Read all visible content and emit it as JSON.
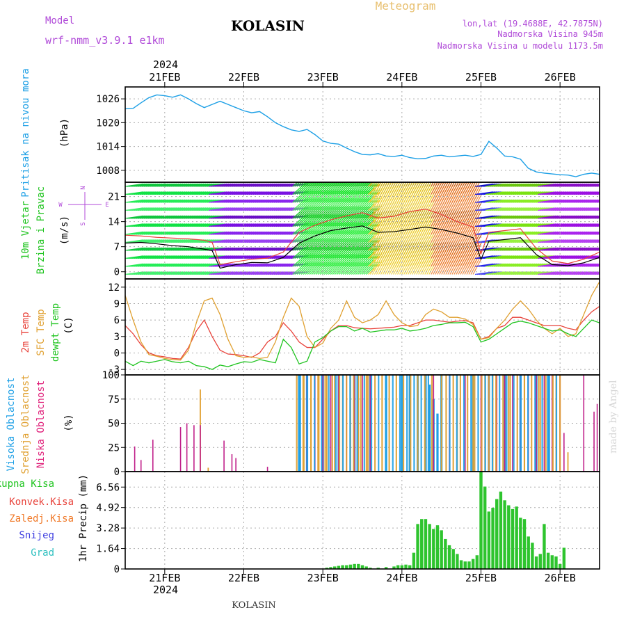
{
  "header": {
    "model_label": "Model",
    "model_name": "wrf-nmm_v3.9.1 e1km",
    "station": "KOLASIN",
    "meteogram_label": "Meteogram",
    "coords": "lon,lat (19.4688E, 42.7875N)",
    "elevation": "Nadmorska Visina 945m",
    "model_elevation": "Nadmorska Visina u modelu 1173.5m",
    "footer_station": "KOLASIN",
    "credit": "made by Angel"
  },
  "time_axis": {
    "labels": [
      "21FEB",
      "22FEB",
      "23FEB",
      "24FEB",
      "25FEB",
      "26FEB"
    ],
    "year": "2024",
    "start_day": 20.5,
    "end_day": 26.5
  },
  "colors": {
    "pressure": "#1ea0e6",
    "temp2m": "#e8423a",
    "sfc": "#e0a030",
    "dewpt": "#1fc41f",
    "high_cloud": "#1ea0e6",
    "mid_cloud": "#e0a030",
    "low_cloud": "#c0208a",
    "precip": "#2ec42e",
    "label_violet": "#b04ad8",
    "label_gold": "#e8c070",
    "label_pink": "#e0207a",
    "label_orange": "#f07a2a",
    "label_blue": "#4040e0",
    "label_cyan": "#30c0c0"
  },
  "panels": {
    "pressure": {
      "side": "Pritisak na nivou mora",
      "unit": "(hPa)"
    },
    "wind": {
      "side1": "10m Vjetar",
      "side2": "Brzina i Pravac",
      "unit": "(m/s)",
      "compass_n": "N",
      "compass_w": "W",
      "compass_e": "E",
      "compass_s": "S"
    },
    "temp": {
      "side1": "2m Temp",
      "side2": "SFC Temp",
      "side3": "dewpt Temp",
      "unit": "(C)"
    },
    "cloud": {
      "side1": "Visoka Oblacnost",
      "side2": "Srednja Oblacnost",
      "side3": "Niska Oblacnost",
      "unit": "(%)"
    },
    "precip": {
      "unit": "1hr Precip (mm)",
      "legend": [
        "Ukupna Kisa",
        "Konvek.Kisa",
        "Zaledj.Kisa",
        "Snijeg",
        "Grad"
      ]
    }
  },
  "chart_data": [
    {
      "type": "line",
      "name": "pressure",
      "ylabel": "(hPa)",
      "ylim": [
        1005,
        1029
      ],
      "yticks": [
        "1026",
        "1020",
        "1014",
        "1008"
      ],
      "x": [
        20.5,
        20.6,
        20.7,
        20.8,
        20.9,
        21.0,
        21.1,
        21.2,
        21.3,
        21.4,
        21.5,
        21.6,
        21.7,
        21.8,
        21.9,
        22.0,
        22.1,
        22.2,
        22.3,
        22.4,
        22.5,
        22.6,
        22.7,
        22.8,
        22.9,
        23.0,
        23.1,
        23.2,
        23.3,
        23.4,
        23.5,
        23.6,
        23.7,
        23.8,
        23.9,
        24.0,
        24.1,
        24.2,
        24.3,
        24.4,
        24.5,
        24.6,
        24.7,
        24.8,
        24.9,
        25.0,
        25.1,
        25.2,
        25.3,
        25.4,
        25.5,
        25.6,
        25.7,
        25.8,
        25.9,
        26.0,
        26.1,
        26.2,
        26.3,
        26.4,
        26.5
      ],
      "values": [
        1023.5,
        1023.6,
        1025.0,
        1026.3,
        1027.0,
        1026.8,
        1026.4,
        1027.0,
        1026.0,
        1024.8,
        1023.8,
        1024.6,
        1025.4,
        1024.6,
        1023.8,
        1023.0,
        1022.5,
        1022.8,
        1021.5,
        1020.0,
        1019.0,
        1018.2,
        1017.8,
        1018.3,
        1017.0,
        1015.4,
        1014.8,
        1014.6,
        1013.6,
        1012.7,
        1012.0,
        1011.9,
        1012.2,
        1011.6,
        1011.5,
        1011.8,
        1011.2,
        1010.9,
        1011.0,
        1011.6,
        1011.8,
        1011.4,
        1011.6,
        1011.8,
        1011.5,
        1012.0,
        1015.3,
        1013.6,
        1011.6,
        1011.4,
        1010.8,
        1008.5,
        1007.6,
        1007.3,
        1007.1,
        1006.9,
        1006.8,
        1006.4,
        1007.0,
        1007.3,
        1007.0
      ]
    },
    {
      "type": "line",
      "name": "wind",
      "ylabel": "(m/s)",
      "ylim": [
        -2,
        25
      ],
      "yticks": [
        "21",
        "14",
        "7",
        "0"
      ],
      "x": [
        20.5,
        20.7,
        20.9,
        21.1,
        21.3,
        21.5,
        21.6,
        21.7,
        21.9,
        22.1,
        22.3,
        22.5,
        22.7,
        22.9,
        23.1,
        23.3,
        23.5,
        23.7,
        23.9,
        24.1,
        24.3,
        24.5,
        24.7,
        24.9,
        25.0,
        25.1,
        25.3,
        25.5,
        25.7,
        25.9,
        26.1,
        26.3,
        26.5
      ],
      "series": [
        {
          "values": [
            8.0,
            8.2,
            7.8,
            7.3,
            7.0,
            6.3,
            5.9,
            1.0,
            2.0,
            2.6,
            2.5,
            4.0,
            8.0,
            10.0,
            11.5,
            12.2,
            12.8,
            11.0,
            11.2,
            11.8,
            12.5,
            11.8,
            10.8,
            9.5,
            3.5,
            8.5,
            9.0,
            9.5,
            4.8,
            2.0,
            1.7,
            2.5,
            4.0
          ]
        },
        {
          "values": [
            10.2,
            10.0,
            9.6,
            9.4,
            9.2,
            8.8,
            8.2,
            2.0,
            2.8,
            3.5,
            3.8,
            5.5,
            11.0,
            13.0,
            14.5,
            15.6,
            16.5,
            15.0,
            15.5,
            16.8,
            17.5,
            16.0,
            14.0,
            12.5,
            5.0,
            11.0,
            11.5,
            12.0,
            6.5,
            3.0,
            2.3,
            3.5,
            5.5
          ]
        }
      ]
    },
    {
      "type": "line",
      "name": "temperature",
      "ylabel": "(C)",
      "ylim": [
        -4,
        13.5
      ],
      "yticks": [
        "12",
        "9",
        "6",
        "3",
        "0",
        "-3"
      ],
      "x": [
        20.5,
        20.6,
        20.7,
        20.8,
        20.9,
        21.0,
        21.1,
        21.2,
        21.3,
        21.4,
        21.5,
        21.6,
        21.7,
        21.8,
        21.9,
        22.0,
        22.1,
        22.2,
        22.3,
        22.4,
        22.5,
        22.6,
        22.7,
        22.8,
        22.9,
        23.0,
        23.1,
        23.2,
        23.3,
        23.4,
        23.5,
        23.6,
        23.7,
        23.8,
        23.9,
        24.0,
        24.1,
        24.2,
        24.3,
        24.4,
        24.5,
        24.6,
        24.7,
        24.8,
        24.9,
        25.0,
        25.1,
        25.2,
        25.3,
        25.4,
        25.5,
        25.6,
        25.7,
        25.8,
        25.9,
        26.0,
        26.1,
        26.2,
        26.3,
        26.4,
        26.5
      ],
      "series": [
        {
          "name": "2m Temp",
          "values": [
            5.0,
            3.5,
            1.5,
            0.0,
            -0.5,
            -0.7,
            -1.0,
            -1.1,
            1.0,
            4.0,
            6.0,
            3.0,
            0.5,
            -0.2,
            -0.3,
            -0.5,
            -0.8,
            0.0,
            2.0,
            3.0,
            5.5,
            4.0,
            2.0,
            1.0,
            1.0,
            2.5,
            4.0,
            5.0,
            5.0,
            4.6,
            4.5,
            4.4,
            4.5,
            4.6,
            4.7,
            5.0,
            5.0,
            5.5,
            6.0,
            6.0,
            5.8,
            5.6,
            5.8,
            5.9,
            5.5,
            2.5,
            3.0,
            4.5,
            5.0,
            6.5,
            6.5,
            6.0,
            5.5,
            5.0,
            5.0,
            5.0,
            4.5,
            4.2,
            6.0,
            7.5,
            8.5
          ]
        },
        {
          "name": "SFC Temp",
          "values": [
            10.5,
            6.0,
            2.0,
            -0.3,
            -0.6,
            -1.0,
            -1.2,
            -1.3,
            0.5,
            5.5,
            9.5,
            10.0,
            7.0,
            2.5,
            -0.5,
            -0.8,
            -0.7,
            -1.0,
            -0.8,
            2.0,
            6.5,
            10.0,
            8.5,
            3.0,
            1.0,
            1.8,
            4.5,
            6.0,
            9.5,
            6.5,
            5.5,
            6.0,
            7.0,
            9.5,
            7.0,
            5.5,
            4.8,
            5.0,
            7.0,
            8.0,
            7.5,
            6.5,
            6.5,
            6.2,
            5.2,
            2.5,
            2.8,
            4.5,
            6.0,
            8.0,
            9.5,
            8.0,
            6.0,
            4.5,
            3.5,
            4.5,
            3.0,
            3.5,
            7.0,
            10.5,
            13.0
          ]
        },
        {
          "name": "dewpt Temp",
          "values": [
            -1.5,
            -2.3,
            -1.5,
            -1.8,
            -1.5,
            -1.2,
            -1.6,
            -1.8,
            -1.5,
            -2.3,
            -2.5,
            -3.0,
            -2.2,
            -2.5,
            -2.0,
            -1.6,
            -1.7,
            -1.2,
            -1.5,
            -1.8,
            2.5,
            1.0,
            -2.0,
            -1.5,
            2.0,
            2.8,
            4.0,
            4.8,
            4.8,
            4.0,
            4.5,
            3.8,
            4.0,
            4.2,
            4.2,
            4.5,
            4.0,
            4.2,
            4.5,
            5.0,
            5.2,
            5.5,
            5.5,
            5.6,
            4.8,
            2.0,
            2.5,
            3.5,
            4.5,
            5.5,
            5.8,
            5.5,
            5.0,
            4.5,
            4.0,
            4.2,
            3.5,
            3.0,
            4.5,
            6.0,
            5.5
          ]
        }
      ]
    },
    {
      "type": "bar",
      "name": "cloud",
      "ylabel": "(%)",
      "ylim": [
        0,
        100
      ],
      "yticks": [
        "100",
        "75",
        "50",
        "25",
        "0"
      ],
      "series": [
        {
          "name": "Niska Oblacnost",
          "x": [
            20.62,
            20.7,
            20.85,
            21.2,
            21.28,
            21.37,
            21.45,
            21.75,
            21.85,
            21.9,
            22.3,
            22.8,
            22.9,
            23.0,
            23.1,
            23.2,
            23.3,
            23.4,
            23.5,
            23.6,
            24.4,
            24.6,
            24.8,
            25.0,
            25.1,
            25.2,
            25.3,
            25.4,
            25.5,
            25.6,
            25.7,
            25.8,
            25.9,
            26.0,
            26.05,
            26.3,
            26.43,
            26.47
          ],
          "values": [
            26,
            12,
            33,
            46,
            50,
            48,
            48,
            32,
            18,
            14,
            5,
            100,
            100,
            100,
            100,
            100,
            100,
            100,
            100,
            100,
            100,
            100,
            100,
            100,
            100,
            100,
            100,
            100,
            100,
            100,
            100,
            100,
            100,
            100,
            40,
            100,
            62,
            70
          ]
        },
        {
          "name": "Srednja Oblacnost",
          "x": [
            21.45,
            21.55,
            22.75,
            22.85,
            22.95,
            23.05,
            23.15,
            23.25,
            23.35,
            23.45,
            23.55,
            24.5,
            24.7,
            24.9,
            25.05,
            25.15,
            25.35,
            25.55,
            25.75,
            25.95,
            26.1
          ],
          "values": [
            85,
            4,
            100,
            100,
            100,
            100,
            100,
            100,
            100,
            100,
            100,
            100,
            100,
            100,
            100,
            100,
            100,
            100,
            100,
            100,
            20
          ]
        },
        {
          "name": "Visoka Oblacnost",
          "x": [
            22.7,
            22.8,
            23.0,
            23.2,
            23.4,
            23.6,
            23.8,
            24.0,
            24.1,
            24.2,
            24.3,
            24.35,
            24.4,
            24.45,
            24.5,
            24.9,
            25.1,
            25.3,
            25.5,
            25.7,
            25.85
          ],
          "values": [
            100,
            100,
            100,
            100,
            100,
            100,
            100,
            100,
            100,
            100,
            100,
            90,
            75,
            60,
            100,
            100,
            100,
            100,
            100,
            100,
            100
          ]
        }
      ]
    },
    {
      "type": "bar",
      "name": "precip",
      "ylabel": "1hr Precip (mm)",
      "ylim": [
        0,
        7.8
      ],
      "yticks": [
        "6.56",
        "4.92",
        "3.28",
        "1.64",
        "0"
      ],
      "x": [
        23.05,
        23.1,
        23.15,
        23.2,
        23.25,
        23.3,
        23.35,
        23.4,
        23.45,
        23.5,
        23.55,
        23.6,
        23.7,
        23.8,
        23.9,
        23.95,
        24.0,
        24.05,
        24.1,
        24.15,
        24.2,
        24.25,
        24.3,
        24.35,
        24.4,
        24.45,
        24.5,
        24.55,
        24.6,
        24.65,
        24.7,
        24.75,
        24.8,
        24.85,
        24.9,
        24.95,
        25.0,
        25.05,
        25.1,
        25.15,
        25.2,
        25.25,
        25.3,
        25.35,
        25.4,
        25.45,
        25.5,
        25.55,
        25.6,
        25.65,
        25.7,
        25.75,
        25.8,
        25.85,
        25.9,
        25.95,
        26.0,
        26.05
      ],
      "values": [
        0.1,
        0.15,
        0.2,
        0.25,
        0.3,
        0.3,
        0.35,
        0.4,
        0.4,
        0.3,
        0.2,
        0.1,
        0.1,
        0.15,
        0.2,
        0.3,
        0.3,
        0.35,
        0.3,
        1.3,
        3.6,
        4.0,
        4.0,
        3.6,
        3.2,
        3.5,
        3.1,
        2.4,
        1.9,
        1.6,
        1.2,
        0.7,
        0.6,
        0.6,
        0.8,
        1.1,
        7.8,
        6.6,
        4.6,
        4.9,
        5.6,
        6.2,
        5.5,
        5.1,
        4.8,
        5.0,
        4.1,
        4.0,
        2.6,
        2.1,
        1.0,
        1.2,
        3.6,
        1.3,
        1.1,
        1.0,
        0.4,
        1.7
      ]
    }
  ]
}
